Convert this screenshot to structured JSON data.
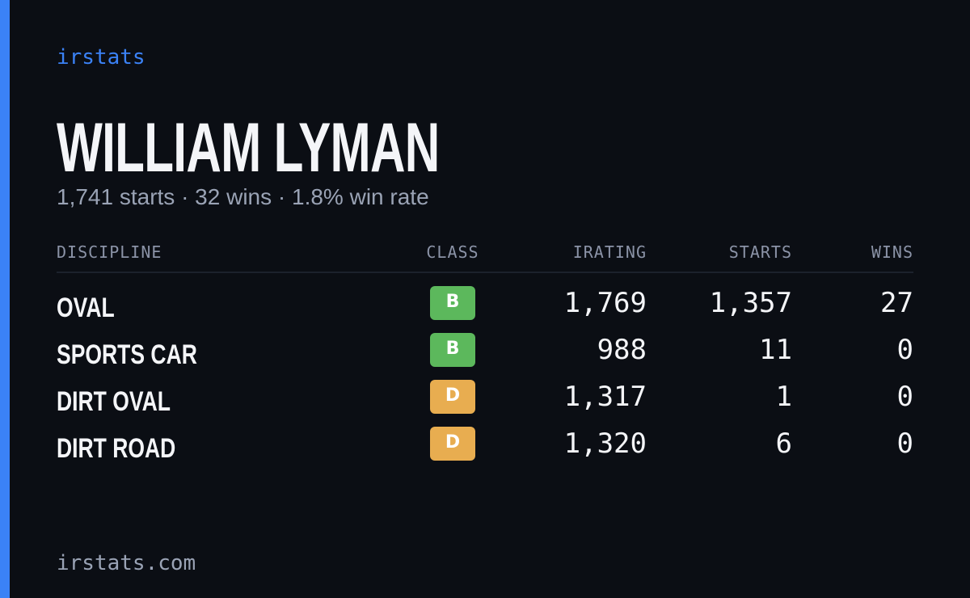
{
  "brand": "irstats",
  "driver": {
    "name": "WILLIAM LYMAN",
    "summary": "1,741 starts · 32 wins · 1.8% win rate"
  },
  "table": {
    "headers": [
      "DISCIPLINE",
      "CLASS",
      "IRATING",
      "STARTS",
      "WINS"
    ],
    "rows": [
      [
        "OVAL",
        "B",
        "1,769",
        "1,357",
        "27"
      ],
      [
        "SPORTS CAR",
        "B",
        "988",
        "11",
        "0"
      ],
      [
        "DIRT OVAL",
        "D",
        "1,317",
        "1",
        "0"
      ],
      [
        "DIRT ROAD",
        "D",
        "1,320",
        "6",
        "0"
      ]
    ],
    "class_colors": {
      "B": "#5cb85c",
      "D": "#e8ad50"
    }
  },
  "footer": "irstats.com"
}
